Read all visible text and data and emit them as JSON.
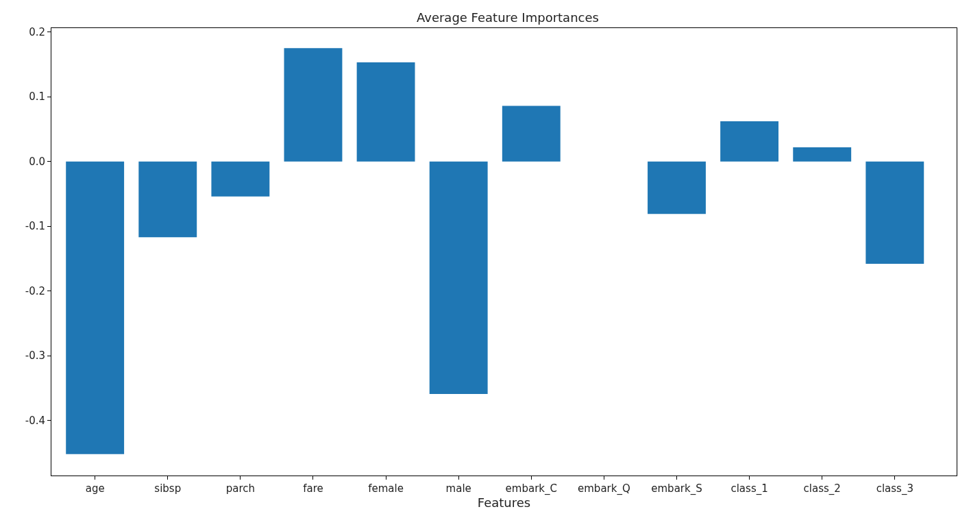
{
  "chart_data": {
    "type": "bar",
    "title": "Average Feature Importances",
    "xlabel": "Features",
    "categories": [
      "age",
      "sibsp",
      "parch",
      "fare",
      "female",
      "male",
      "embark_C",
      "embark_Q",
      "embark_S",
      "class_1",
      "class_2",
      "class_3"
    ],
    "values": [
      -0.452,
      -0.117,
      -0.054,
      0.175,
      0.153,
      -0.359,
      0.086,
      0.0,
      -0.081,
      0.062,
      0.022,
      -0.158
    ],
    "color": "#1f77b4",
    "ylim": [
      -0.485,
      0.206
    ],
    "yticks": [
      -0.4,
      -0.3,
      -0.2,
      -0.1,
      {
        "value": 0,
        "label": "0.0"
      },
      0.1,
      0.2
    ]
  }
}
